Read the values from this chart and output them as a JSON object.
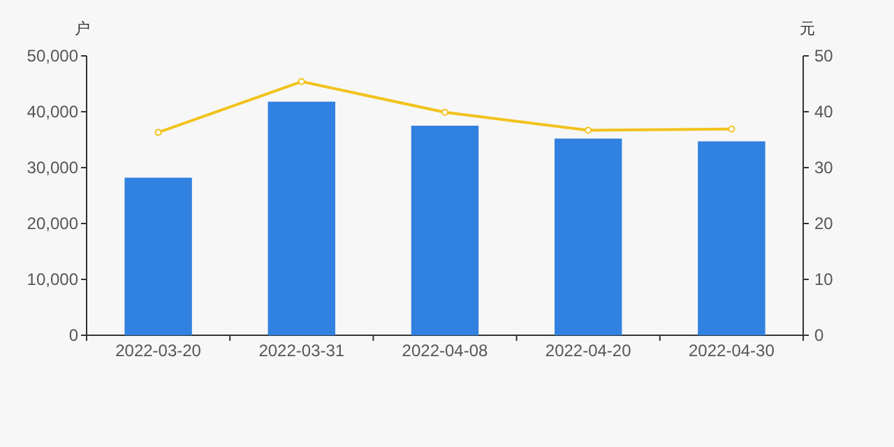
{
  "chart_data": {
    "type": "bar",
    "ylabel": "户",
    "y2label": "元",
    "categories": [
      "2022-03-20",
      "2022-03-31",
      "2022-04-08",
      "2022-04-20",
      "2022-04-30"
    ],
    "ylim": [
      0,
      50000
    ],
    "yticks": [
      {
        "value": 0,
        "label": "0"
      },
      {
        "value": 10000,
        "label": "10,000"
      },
      {
        "value": 20000,
        "label": "20,000"
      },
      {
        "value": 30000,
        "label": "30,000"
      },
      {
        "value": 40000,
        "label": "40,000"
      },
      {
        "value": 50000,
        "label": "50,000"
      }
    ],
    "y2lim": [
      0,
      50
    ],
    "y2ticks": [
      0,
      10,
      20,
      30,
      40,
      50
    ],
    "grid": false,
    "series": [
      {
        "color": "#3181e0",
        "values": [
          28200,
          41800,
          37500,
          35200,
          34700
        ]
      },
      {
        "type": "line",
        "axis": "y2",
        "color": "#f2c21b",
        "marker": "circle",
        "values": [
          36.3,
          45.4,
          39.9,
          36.7,
          36.9
        ]
      }
    ]
  }
}
